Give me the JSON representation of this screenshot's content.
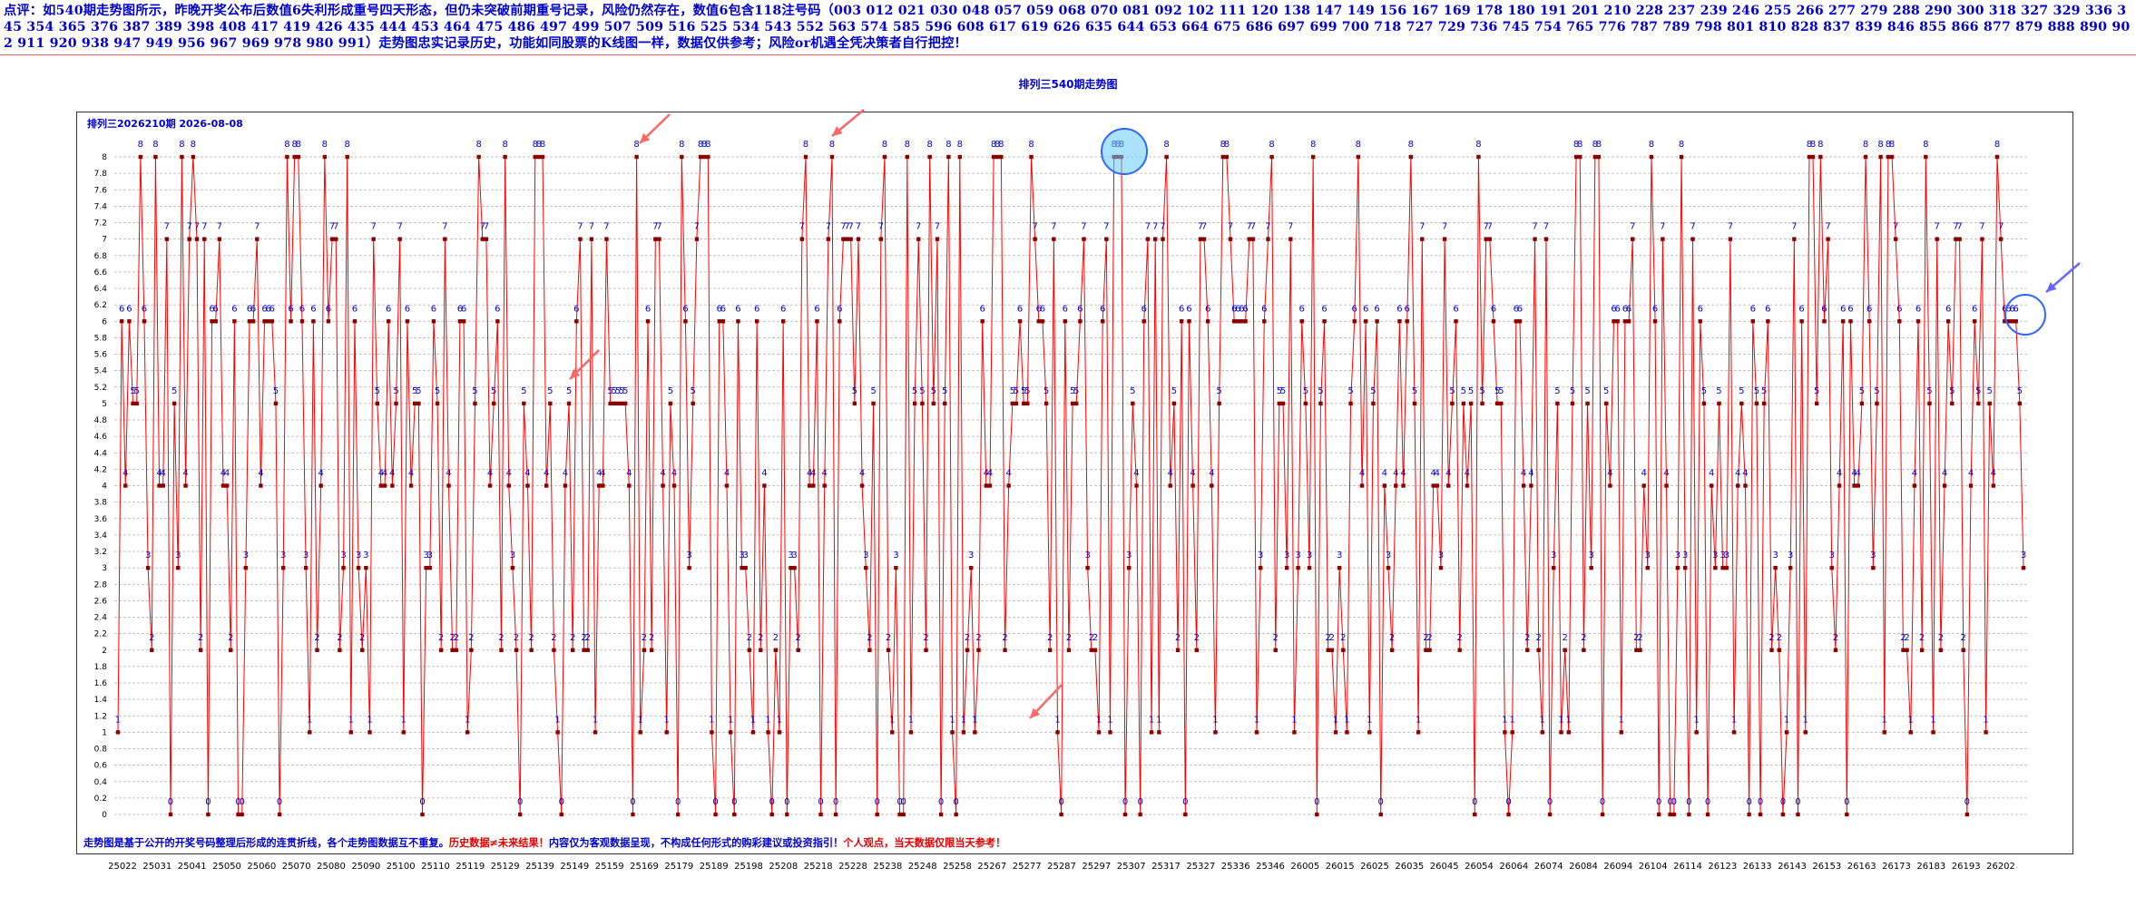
{
  "comment": "点评：如540期走势图所示，昨晚开奖公布后数值6失利形成重号四天形态，但仍未突破前期重号记录，风险仍然存在，数值6包含118注号码（003 012 021 030 048 057 059 068 070 081 092 102 111 120 138 147 149 156 167 169 178 180 191 201 210 228 237 239 246 255 266 277 279 288 290 300 318 327 329 336 345 354 365 376 387 389 398 408 417 419 426 435 444 453 464 475 486 497 499 507 509 516 525 534 543 552 563 574 585 596 608 617 619 626 635 644 653 664 675 686 697 699 700 718 727 729 736 745 754 765 776 787 789 798 801 810 828 837 839 846 855 866 877 879 888 890 902 911 920 938 947 949 956 967 969 978 980 991）走势图忠实记录历史，功能如同股票的K线图一样，数据仅供参考；风险or机遇全凭决策者自行把控！",
  "chart_title": "排列三540期走势图",
  "period_label": "排列三2026210期  2026-08-08",
  "bottom_note": {
    "part1": "走势图是基于公开的开奖号码整理后形成的连贯折线，各个走势图数据互不重复。",
    "part2": "历史数据≠未来结果！",
    "part3": "内容仅为客观数据呈现，不构成任何形式的购彩建议或投资指引！",
    "part4": "个人观点，当天数据仅限当天参考！"
  },
  "colors": {
    "line": "#ff0000",
    "marker": "#8b0000",
    "value_label": "#0000cc",
    "grid": "#b0b0b0",
    "highlight": "#66ccff",
    "arrow": "#ff6666",
    "arrow_right": "#6666ff"
  },
  "chart_data": {
    "type": "line",
    "title": "排列三540期走势图",
    "ylim": [
      0,
      8
    ],
    "yticks": [
      "0",
      "0.2",
      "0.4",
      "0.6",
      "0.8",
      "1",
      "1.2",
      "1.4",
      "1.6",
      "1.8",
      "2",
      "2.2",
      "2.4",
      "2.6",
      "2.8",
      "3",
      "3.2",
      "3.4",
      "3.6",
      "3.8",
      "4",
      "4.2",
      "4.4",
      "4.6",
      "4.8",
      "5",
      "5.2",
      "5.4",
      "5.6",
      "5.8",
      "6",
      "6.2",
      "6.4",
      "6.6",
      "6.8",
      "7",
      "7.2",
      "7.4",
      "7.6",
      "7.8",
      "8"
    ],
    "xticks": [
      "25022",
      "25031",
      "25041",
      "25050",
      "25060",
      "25070",
      "25080",
      "25090",
      "25100",
      "25110",
      "25119",
      "25129",
      "25139",
      "25149",
      "25159",
      "25169",
      "25179",
      "25189",
      "25198",
      "25208",
      "25218",
      "25228",
      "25238",
      "25248",
      "25258",
      "25267",
      "25277",
      "25287",
      "25297",
      "25307",
      "25317",
      "25327",
      "25336",
      "25346",
      "26005",
      "26015",
      "26025",
      "26035",
      "26045",
      "26054",
      "26064",
      "26074",
      "26084",
      "26094",
      "26104",
      "26114",
      "26123",
      "26133",
      "26143",
      "26153",
      "26163",
      "26173",
      "26183",
      "26193",
      "26202"
    ],
    "grid": true,
    "values": [
      1,
      6,
      4,
      6,
      5,
      5,
      8,
      6,
      3,
      2,
      8,
      4,
      4,
      7,
      0,
      5,
      3,
      8,
      4,
      7,
      8,
      7,
      2,
      7,
      0,
      6,
      6,
      7,
      4,
      4,
      2,
      6,
      0,
      0,
      3,
      6,
      6,
      7,
      4,
      6,
      6,
      6,
      5,
      0,
      3,
      8,
      6,
      8,
      8,
      6,
      3,
      1,
      6,
      2,
      4,
      8,
      6,
      7,
      7,
      2,
      3,
      8,
      1,
      6,
      3,
      2,
      3,
      1,
      7,
      5,
      4,
      4,
      6,
      4,
      5,
      7,
      1,
      6,
      4,
      5,
      5,
      0,
      3,
      3,
      6,
      5,
      2,
      7,
      4,
      2,
      2,
      6,
      6,
      1,
      2,
      5,
      8,
      7,
      7,
      4,
      5,
      6,
      2,
      8,
      4,
      3,
      2,
      0,
      5,
      4,
      2,
      8,
      8,
      8,
      4,
      5,
      2,
      1,
      0,
      4,
      5,
      2,
      6,
      7,
      2,
      2,
      7,
      1,
      4,
      4,
      7,
      5,
      5,
      5,
      5,
      5,
      4,
      0,
      8,
      1,
      2,
      6,
      2,
      7,
      7,
      4,
      1,
      5,
      4,
      0,
      8,
      6,
      3,
      5,
      7,
      8,
      8,
      8,
      1,
      0,
      6,
      6,
      4,
      1,
      0,
      6,
      3,
      3,
      2,
      1,
      6,
      2,
      4,
      1,
      0,
      2,
      1,
      6,
      0,
      3,
      3,
      2,
      7,
      8,
      4,
      4,
      6,
      0,
      4,
      7,
      8,
      0,
      6,
      7,
      7,
      7,
      5,
      7,
      4,
      3,
      2,
      5,
      0,
      7,
      8,
      2,
      1,
      3,
      0,
      0,
      8,
      1,
      5,
      7,
      5,
      2,
      8,
      5,
      7,
      0,
      5,
      8,
      1,
      0,
      8,
      1,
      2,
      3,
      1,
      2,
      6,
      4,
      4,
      8,
      8,
      8,
      2,
      4,
      5,
      5,
      6,
      5,
      5,
      8,
      7,
      6,
      6,
      5,
      2,
      7,
      1,
      0,
      6,
      2,
      5,
      5,
      6,
      7,
      3,
      2,
      2,
      1,
      6,
      7,
      1,
      8,
      8,
      8,
      0,
      3,
      5,
      4,
      0,
      6,
      7,
      1,
      7,
      1,
      7,
      8,
      4,
      5,
      2,
      6,
      0,
      6,
      4,
      2,
      7,
      7,
      6,
      4,
      1,
      5,
      8,
      8,
      7,
      6,
      6,
      6,
      6,
      7,
      7,
      1,
      3,
      6,
      7,
      8,
      2,
      5,
      5,
      3,
      7,
      1,
      3,
      6,
      5,
      3,
      8,
      0,
      5,
      6,
      2,
      2,
      1,
      3,
      2,
      1,
      5,
      6,
      8,
      4,
      6,
      1,
      5,
      6,
      0,
      4,
      3,
      2,
      4,
      6,
      4,
      6,
      8,
      5,
      1,
      7,
      2,
      2,
      4,
      4,
      3,
      7,
      4,
      5,
      6,
      2,
      5,
      4,
      5,
      0,
      8,
      5,
      7,
      7,
      6,
      5,
      5,
      1,
      0,
      1,
      6,
      6,
      4,
      2,
      4,
      7,
      2,
      1,
      7,
      0,
      3,
      5,
      1,
      2,
      1,
      5,
      8,
      8,
      2,
      5,
      3,
      8,
      8,
      0,
      5,
      4,
      6,
      6,
      1,
      6,
      6,
      7,
      2,
      2,
      4,
      3,
      8,
      6,
      0,
      7,
      4,
      0,
      0,
      3,
      8,
      3,
      0,
      7,
      1,
      6,
      5,
      0,
      4,
      3,
      5,
      3,
      3,
      7,
      1,
      4,
      5,
      4,
      0,
      6,
      5,
      0,
      5,
      6,
      2,
      3,
      2,
      0,
      1,
      3,
      7,
      0,
      6,
      1,
      8,
      8,
      5,
      8,
      6,
      7,
      3,
      2,
      4,
      6,
      0,
      6,
      4,
      4,
      5,
      8,
      6,
      3,
      5,
      8,
      1,
      8,
      8,
      7,
      6,
      2,
      2,
      1,
      4,
      6,
      2,
      8,
      5,
      1,
      7,
      2,
      4,
      6,
      5,
      7,
      7,
      2,
      0,
      4,
      6,
      5,
      7,
      1,
      5,
      4,
      8,
      7,
      6,
      6,
      6,
      6,
      5,
      3
    ]
  }
}
